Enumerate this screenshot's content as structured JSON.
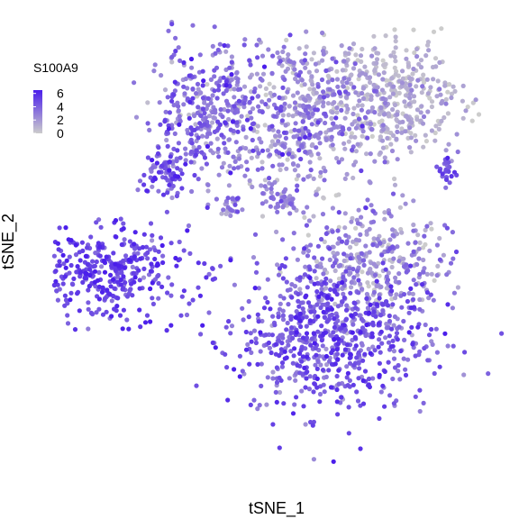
{
  "chart_data": {
    "type": "scatter",
    "title": "",
    "xlabel": "tSNE_1",
    "ylabel": "tSNE_2",
    "grid": false,
    "legend": {
      "title": "S100A9",
      "position": "top-left",
      "ticks": [
        "6",
        "4",
        "2",
        "0"
      ],
      "tick_values": [
        6,
        4,
        2,
        0
      ],
      "range": [
        0,
        6.5
      ]
    },
    "colors": {
      "low": "#cccccc",
      "high": "#4b1eeb"
    },
    "x_range": [
      -40,
      40
    ],
    "y_range": [
      -40,
      40
    ],
    "clusters": [
      {
        "label": "top-left-lobe",
        "cx": -13,
        "cy": 23,
        "sx": 5,
        "sy": 6,
        "n": 360,
        "expr_mean": 3.3,
        "expr_sd": 1.4
      },
      {
        "label": "top-center-lobe",
        "cx": 4,
        "cy": 23,
        "sx": 7,
        "sy": 7,
        "n": 520,
        "expr_mean": 2.3,
        "expr_sd": 1.3
      },
      {
        "label": "top-right-lobe",
        "cx": 20,
        "cy": 26,
        "sx": 6,
        "sy": 5,
        "n": 380,
        "expr_mean": 1.0,
        "expr_sd": 0.9
      },
      {
        "label": "top-far-left-arm",
        "cx": -20,
        "cy": 13,
        "sx": 2.0,
        "sy": 2.5,
        "n": 70,
        "expr_mean": 4.6,
        "expr_sd": 1.0
      },
      {
        "label": "small-center-group",
        "cx": 0,
        "cy": 8,
        "sx": 2.0,
        "sy": 1.2,
        "n": 45,
        "expr_mean": 2.5,
        "expr_sd": 1.1
      },
      {
        "label": "small-left-group",
        "cx": -9,
        "cy": 7,
        "sx": 1.2,
        "sy": 1.0,
        "n": 20,
        "expr_mean": 2.6,
        "expr_sd": 1.0
      },
      {
        "label": "right-small-group",
        "cx": 30,
        "cy": 14,
        "sx": 1.3,
        "sy": 1.4,
        "n": 25,
        "expr_mean": 4.5,
        "expr_sd": 1.0
      },
      {
        "label": "far-left-island",
        "cx": -31,
        "cy": -5,
        "sx": 7.5,
        "sy": 4.0,
        "n": 390,
        "expr_mean": 5.0,
        "expr_sd": 1.0
      },
      {
        "label": "bottom-middle-right",
        "cx": 16,
        "cy": -3,
        "sx": 7,
        "sy": 5,
        "n": 360,
        "expr_mean": 2.3,
        "expr_sd": 1.4
      },
      {
        "label": "bottom-lobe",
        "cx": 9,
        "cy": -16,
        "sx": 8.5,
        "sy": 6.5,
        "n": 720,
        "expr_mean": 4.3,
        "expr_sd": 1.2
      }
    ]
  }
}
